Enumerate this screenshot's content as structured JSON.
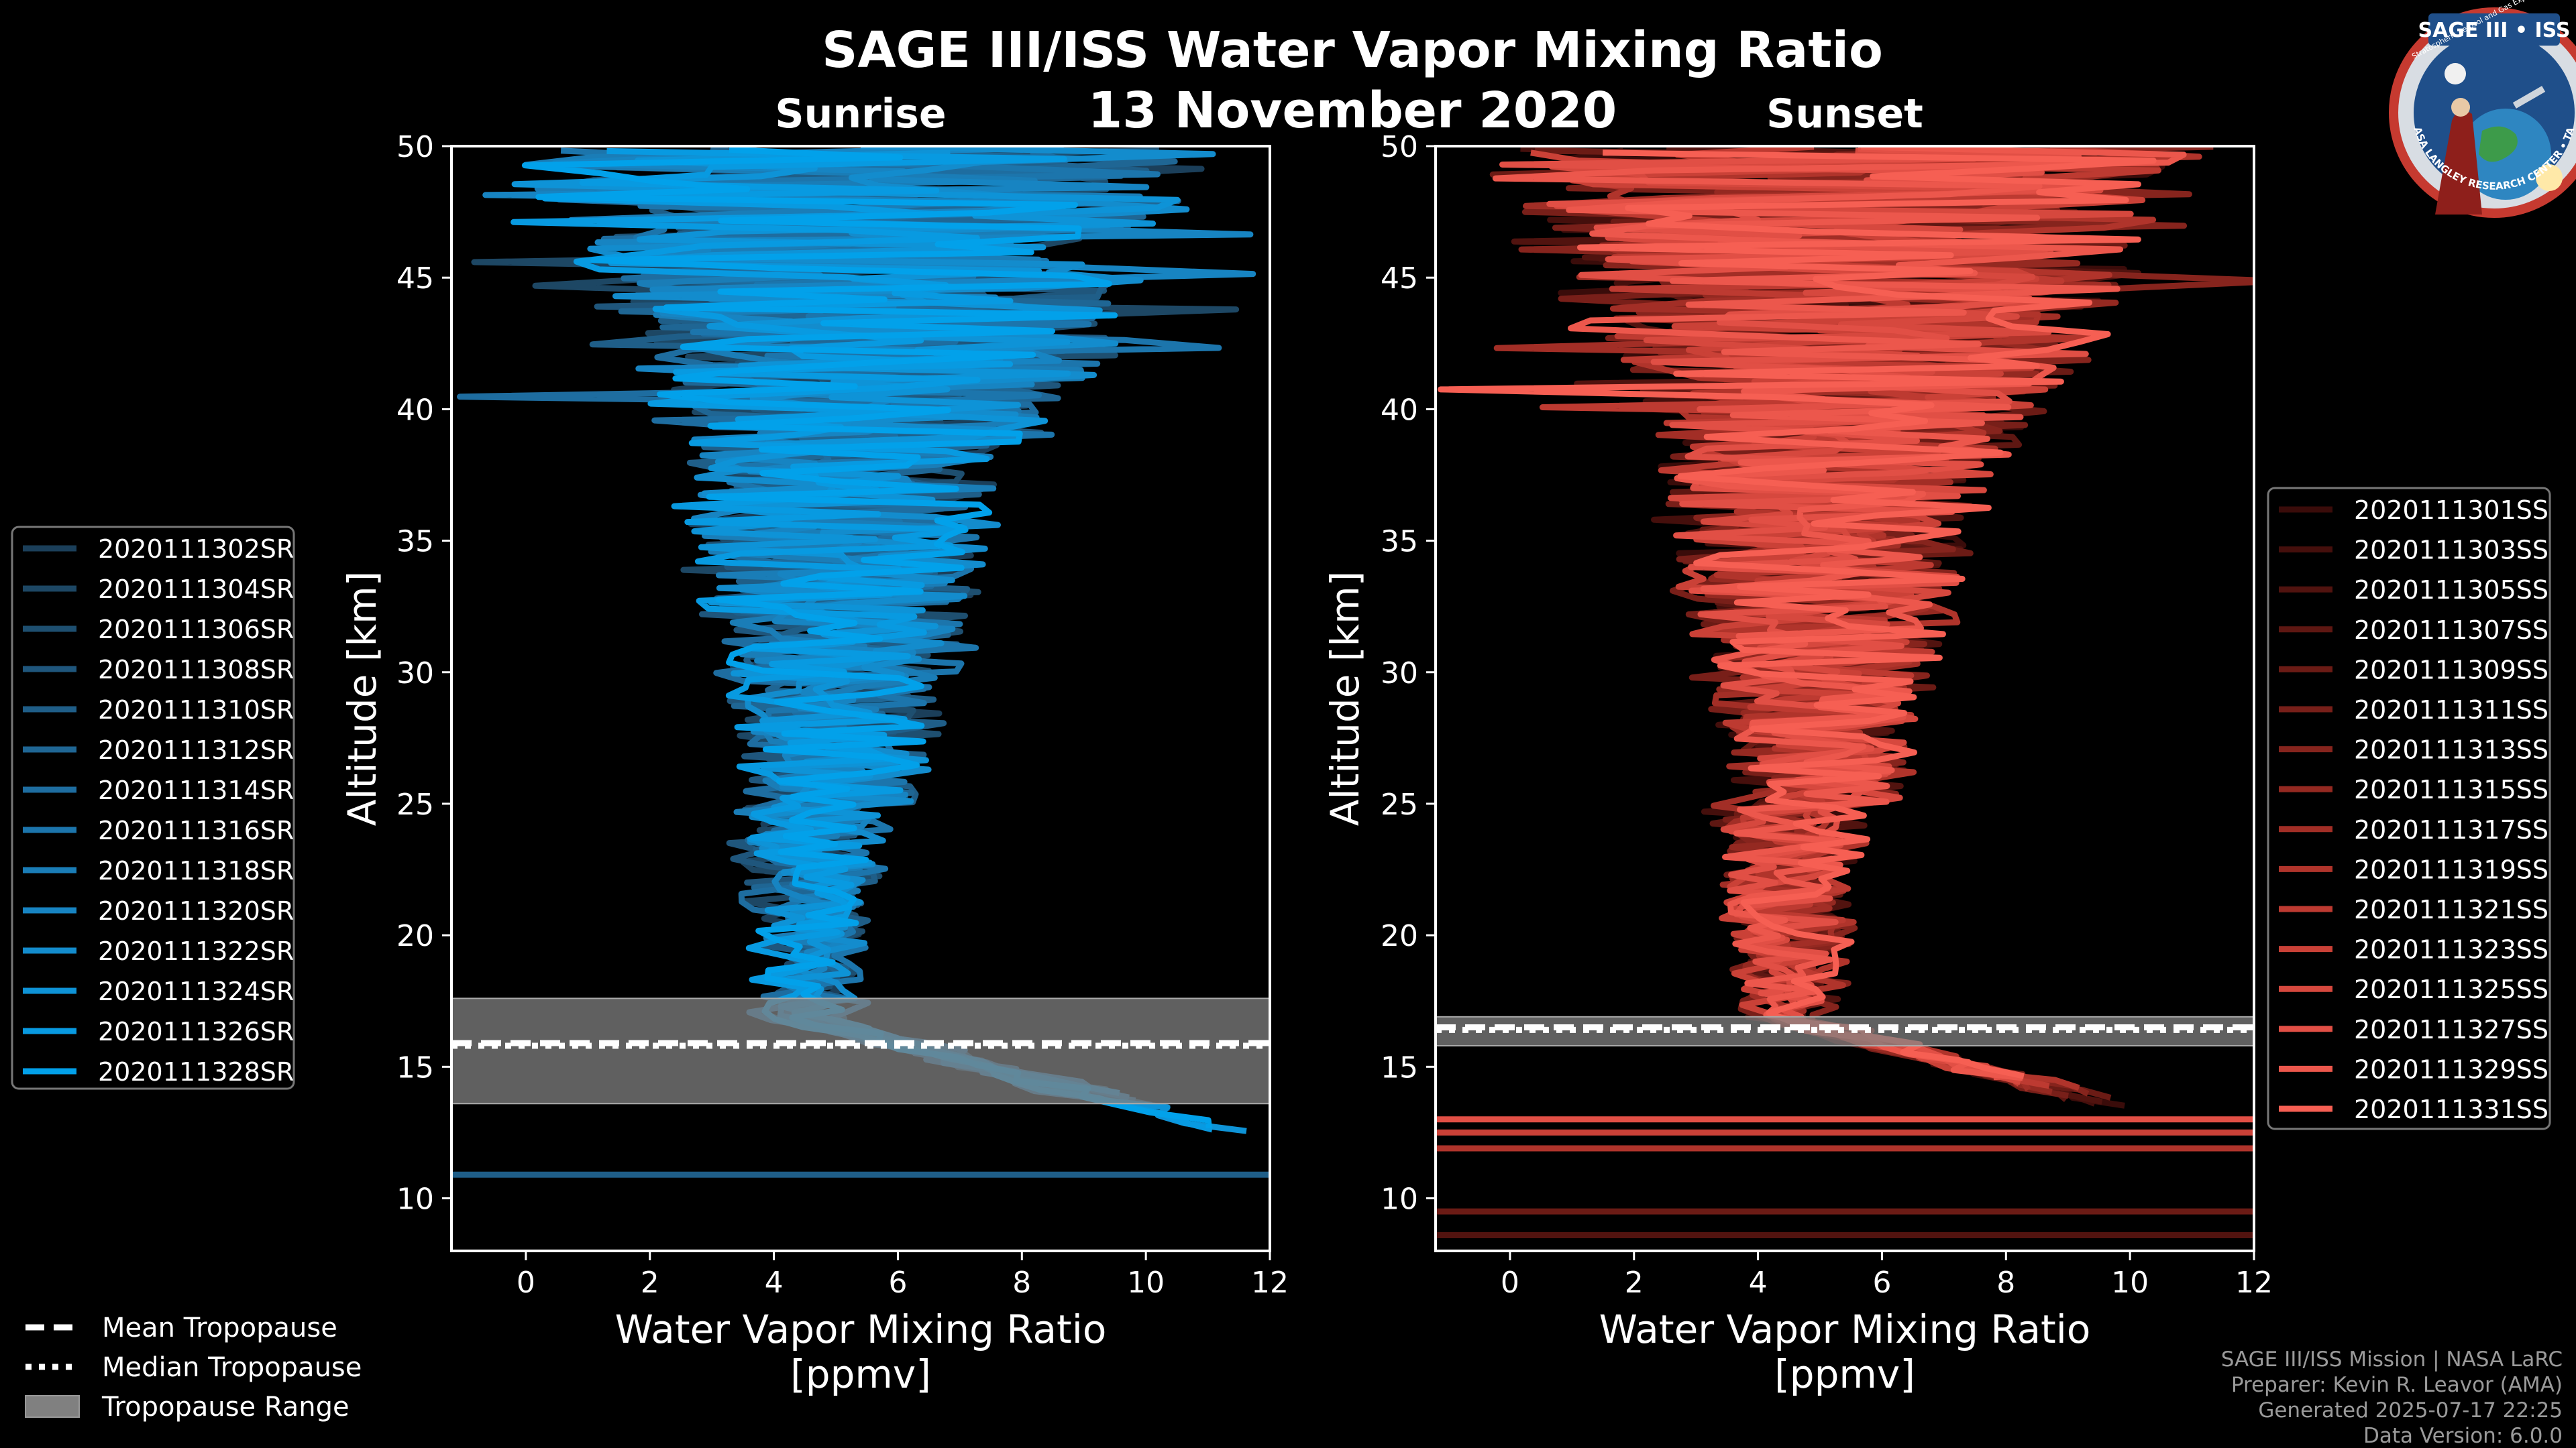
{
  "chart_data": {
    "title": "SAGE III/ISS Water Vapor Mixing Ratio",
    "date": "13 November 2020",
    "panels": [
      {
        "id": "sunrise",
        "subtitle": "Sunrise",
        "type": "line",
        "xlabel_line1": "Water Vapor Mixing Ratio",
        "xlabel_line2": "[ppmv]",
        "ylabel": "Altitude [km]",
        "xlim": [
          -1.2,
          12
        ],
        "ylim": [
          8,
          50
        ],
        "xticks": [
          0,
          2,
          4,
          6,
          8,
          10,
          12
        ],
        "yticks": [
          10,
          15,
          20,
          25,
          30,
          35,
          40,
          45,
          50
        ],
        "tropopause": {
          "mean": 15.9,
          "median": 15.8,
          "range": [
            13.6,
            17.6
          ]
        },
        "series": [
          {
            "name": "2020111302SR",
            "color": "#1b3f5a",
            "mean_ppmv": 5.1
          },
          {
            "name": "2020111304SR",
            "color": "#1d4764",
            "mean_ppmv": 4.8
          },
          {
            "name": "2020111306SR",
            "color": "#1e4f70",
            "mean_ppmv": 5.3
          },
          {
            "name": "2020111308SR",
            "color": "#1f567c",
            "mean_ppmv": 4.9
          },
          {
            "name": "2020111310SR",
            "color": "#1f5e88",
            "mean_ppmv": 5.2
          },
          {
            "name": "2020111312SR",
            "color": "#1f6694",
            "mean_ppmv": 5.0
          },
          {
            "name": "2020111314SR",
            "color": "#1e6da0",
            "mean_ppmv": 4.7
          },
          {
            "name": "2020111316SR",
            "color": "#1c75ac",
            "mean_ppmv": 5.4
          },
          {
            "name": "2020111318SR",
            "color": "#1a7db7",
            "mean_ppmv": 5.0
          },
          {
            "name": "2020111320SR",
            "color": "#1784c2",
            "mean_ppmv": 4.9
          },
          {
            "name": "2020111322SR",
            "color": "#138ccd",
            "mean_ppmv": 5.2
          },
          {
            "name": "2020111324SR",
            "color": "#0e93d7",
            "mean_ppmv": 5.1
          },
          {
            "name": "2020111326SR",
            "color": "#089ae1",
            "mean_ppmv": 4.8
          },
          {
            "name": "2020111328SR",
            "color": "#02a1ea",
            "mean_ppmv": 5.0
          }
        ]
      },
      {
        "id": "sunset",
        "subtitle": "Sunset",
        "type": "line",
        "xlabel_line1": "Water Vapor Mixing Ratio",
        "xlabel_line2": "[ppmv]",
        "ylabel": "Altitude [km]",
        "xlim": [
          -1.2,
          12
        ],
        "ylim": [
          8,
          50
        ],
        "xticks": [
          0,
          2,
          4,
          6,
          8,
          10,
          12
        ],
        "yticks": [
          10,
          15,
          20,
          25,
          30,
          35,
          40,
          45,
          50
        ],
        "tropopause": {
          "mean": 16.5,
          "median": 16.4,
          "range": [
            15.8,
            16.9
          ]
        },
        "series": [
          {
            "name": "2020111301SS",
            "color": "#3a0c0a",
            "mean_ppmv": 5.0
          },
          {
            "name": "2020111303SS",
            "color": "#450f0c",
            "mean_ppmv": 4.8
          },
          {
            "name": "2020111305SS",
            "color": "#51130f",
            "mean_ppmv": 5.2
          },
          {
            "name": "2020111307SS",
            "color": "#5e1712",
            "mean_ppmv": 4.9
          },
          {
            "name": "2020111309SS",
            "color": "#6b1b15",
            "mean_ppmv": 5.1
          },
          {
            "name": "2020111311SS",
            "color": "#781f19",
            "mean_ppmv": 4.7
          },
          {
            "name": "2020111313SS",
            "color": "#86241d",
            "mean_ppmv": 5.3
          },
          {
            "name": "2020111315SS",
            "color": "#942921",
            "mean_ppmv": 5.0
          },
          {
            "name": "2020111317SS",
            "color": "#a22e26",
            "mean_ppmv": 4.9
          },
          {
            "name": "2020111319SS",
            "color": "#b0342b",
            "mean_ppmv": 5.2
          },
          {
            "name": "2020111321SS",
            "color": "#bd3a31",
            "mean_ppmv": 5.0
          },
          {
            "name": "2020111323SS",
            "color": "#ca4137",
            "mean_ppmv": 4.8
          },
          {
            "name": "2020111325SS",
            "color": "#d6483e",
            "mean_ppmv": 5.1
          },
          {
            "name": "2020111327SS",
            "color": "#e14f45",
            "mean_ppmv": 5.0
          },
          {
            "name": "2020111329SS",
            "color": "#ec574c",
            "mean_ppmv": 4.9
          },
          {
            "name": "2020111331SS",
            "color": "#f65f53",
            "mean_ppmv": 5.2
          }
        ]
      }
    ],
    "tropopause_legend": {
      "mean": "Mean Tropopause",
      "median": "Median Tropopause",
      "range": "Tropopause Range"
    }
  },
  "logo": {
    "top": "SAGE III • ISS",
    "side": "Stratospheric Aerosol and Gas Experiment III International Space Station",
    "bottom": "BALL • NASA LANGLEY RESEARCH CENTER • TAS-I • ESA"
  },
  "credits": {
    "line1": "SAGE III/ISS Mission | NASA LaRC",
    "line2": "Preparer: Kevin R. Leavor (AMA)",
    "line3": "Generated 2025-07-17 22:25",
    "line4": "Data Version: 6.0.0"
  },
  "colors": {
    "background": "#000000",
    "tropo_fill": "#808080",
    "sunrise_accent": "#02a1ea",
    "sunset_accent": "#f65f53"
  }
}
